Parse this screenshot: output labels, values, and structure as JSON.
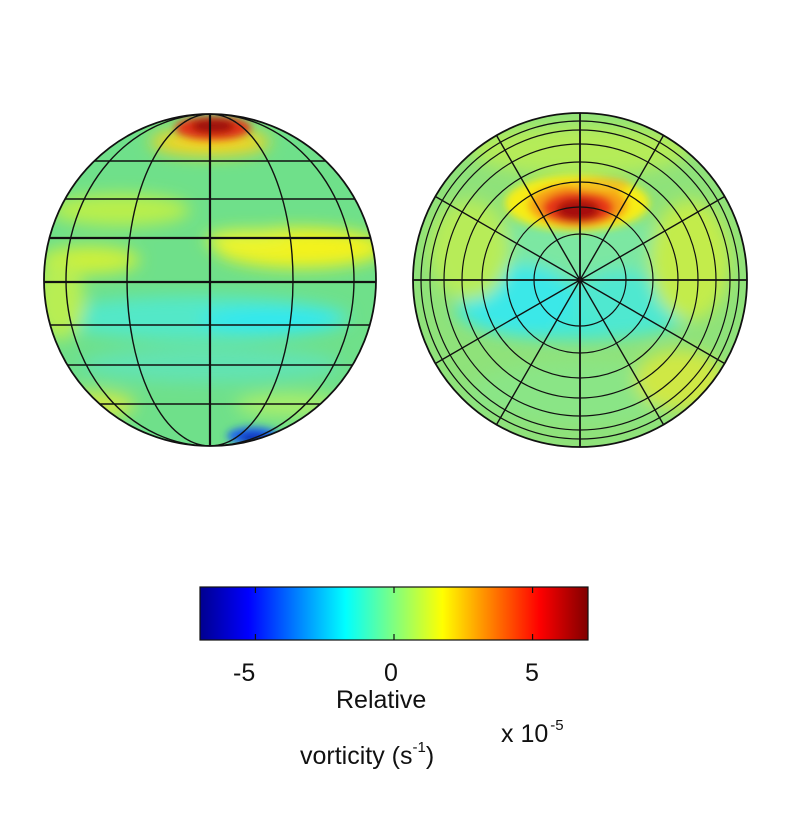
{
  "colorbar": {
    "ticks": [
      "-5",
      "0",
      "5"
    ],
    "min": -7,
    "max": 7,
    "label_line1": "Relative",
    "label_line2": "vorticity (s",
    "label_line2_sup": "-1",
    "label_line2_end": ")",
    "multiplier": "x 10",
    "multiplier_exp": "-5",
    "colormap": "jet",
    "colors": [
      "#00008f",
      "#0000ff",
      "#00ffff",
      "#ffff00",
      "#ff0000",
      "#800000"
    ]
  },
  "globes": [
    {
      "name": "globe-equatorial-view",
      "projection": "orthographic-equatorial"
    },
    {
      "name": "globe-polar-view",
      "projection": "orthographic-polar"
    }
  ]
}
